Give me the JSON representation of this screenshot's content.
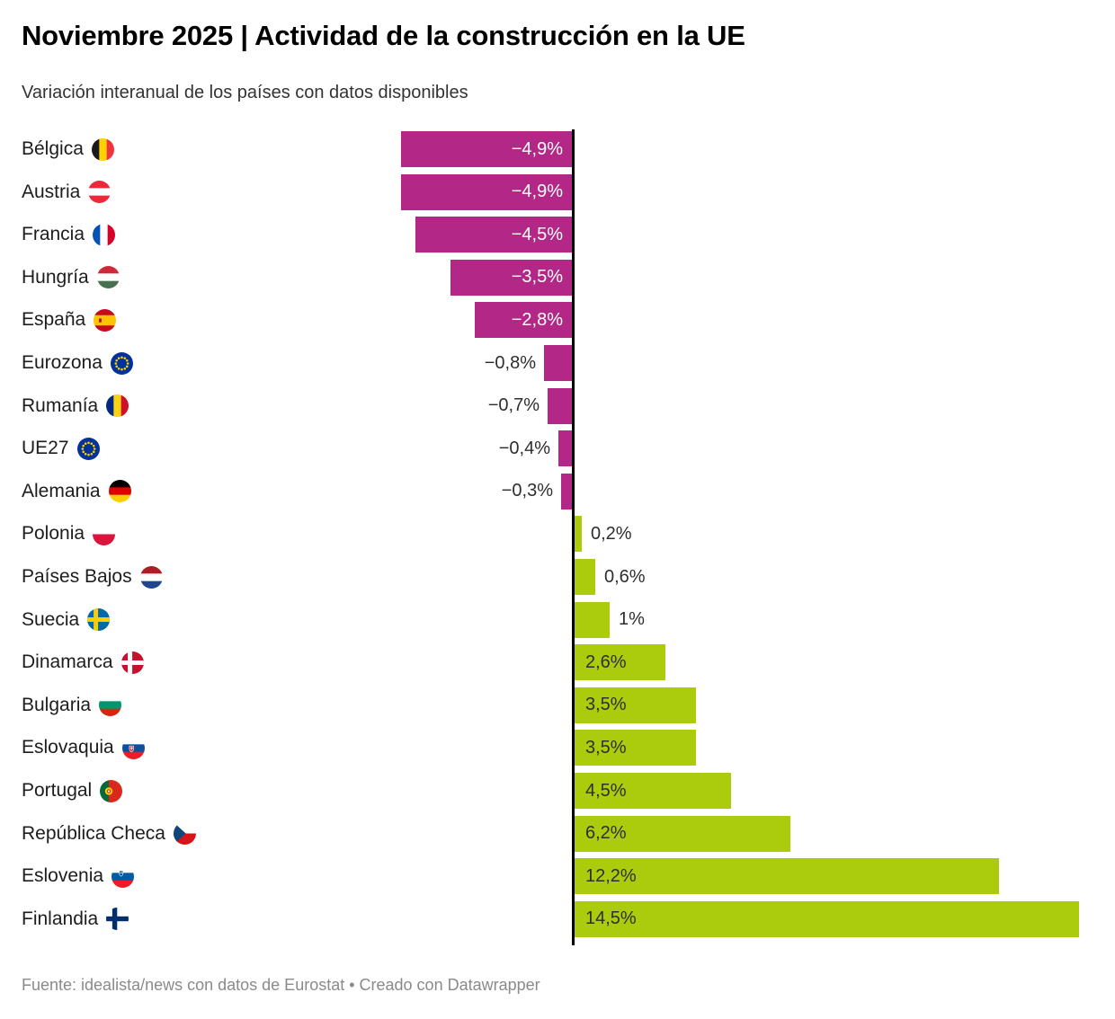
{
  "header": {
    "title": "Noviembre 2025 | Actividad de la construcción en la UE",
    "subtitle": "Variación interanual de los países con datos disponibles"
  },
  "footer": {
    "text": "Fuente: idealista/news con datos de Eurostat • Creado con Datawrapper"
  },
  "chart_data": {
    "type": "bar",
    "orientation": "horizontal",
    "value_unit": "%",
    "xlim": [
      -5.2,
      15
    ],
    "grid": false,
    "legend": "none",
    "colors": {
      "negative_bar": "#b32786",
      "positive_bar": "#aacc0c",
      "axis_line": "#000000",
      "label_inside_negative": "#ffffff",
      "label_inside_positive": "#2e2e2e",
      "label_outside": "#2e2e2e"
    },
    "rows": [
      {
        "country": "Bélgica",
        "flag": "belgium",
        "value": -4.9,
        "label": "−4,9%"
      },
      {
        "country": "Austria",
        "flag": "austria",
        "value": -4.9,
        "label": "−4,9%"
      },
      {
        "country": "Francia",
        "flag": "france",
        "value": -4.5,
        "label": "−4,5%"
      },
      {
        "country": "Hungría",
        "flag": "hungary",
        "value": -3.5,
        "label": "−3,5%"
      },
      {
        "country": "España",
        "flag": "spain",
        "value": -2.8,
        "label": "−2,8%"
      },
      {
        "country": "Eurozona",
        "flag": "eu",
        "value": -0.8,
        "label": "−0,8%"
      },
      {
        "country": "Rumanía",
        "flag": "romania",
        "value": -0.7,
        "label": "−0,7%"
      },
      {
        "country": "UE27",
        "flag": "eu",
        "value": -0.4,
        "label": "−0,4%"
      },
      {
        "country": "Alemania",
        "flag": "germany",
        "value": -0.3,
        "label": "−0,3%"
      },
      {
        "country": "Polonia",
        "flag": "poland",
        "value": 0.2,
        "label": "0,2%"
      },
      {
        "country": "Países Bajos",
        "flag": "netherlands",
        "value": 0.6,
        "label": "0,6%"
      },
      {
        "country": "Suecia",
        "flag": "sweden",
        "value": 1.0,
        "label": "1%"
      },
      {
        "country": "Dinamarca",
        "flag": "denmark",
        "value": 2.6,
        "label": "2,6%"
      },
      {
        "country": "Bulgaria",
        "flag": "bulgaria",
        "value": 3.5,
        "label": "3,5%"
      },
      {
        "country": "Eslovaquia",
        "flag": "slovakia",
        "value": 3.5,
        "label": "3,5%"
      },
      {
        "country": "Portugal",
        "flag": "portugal",
        "value": 4.5,
        "label": "4,5%"
      },
      {
        "country": "República Checa",
        "flag": "czechia",
        "value": 6.2,
        "label": "6,2%"
      },
      {
        "country": "Eslovenia",
        "flag": "slovenia",
        "value": 12.2,
        "label": "12,2%"
      },
      {
        "country": "Finlandia",
        "flag": "finland",
        "value": 14.5,
        "label": "14,5%"
      }
    ]
  }
}
